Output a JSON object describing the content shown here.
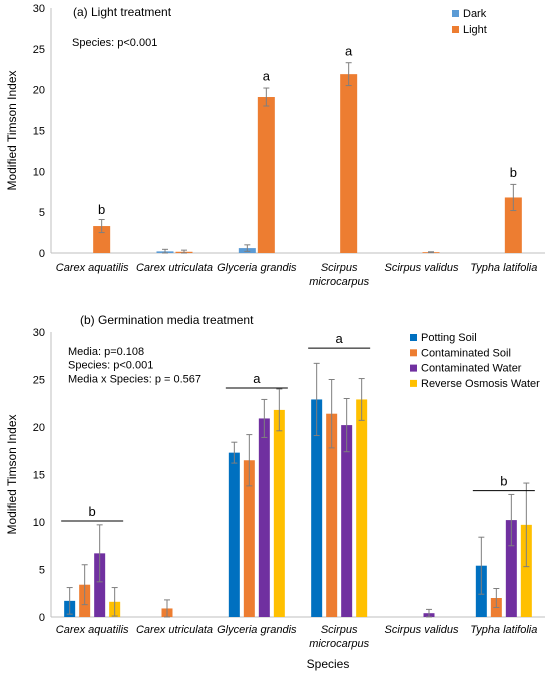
{
  "chart_data": [
    {
      "type": "bar",
      "title": "(a) Light treatment",
      "annotation_lines": [
        "Species: p<0.001"
      ],
      "ylabel": "Modified Timson Index",
      "xlabel": "",
      "ylim": [
        0,
        30
      ],
      "yticks": [
        0,
        5,
        10,
        15,
        20,
        25,
        30
      ],
      "grid": false,
      "legend": "top-right",
      "categories": [
        {
          "lines": [
            "Carex aquatilis"
          ]
        },
        {
          "lines": [
            "Carex utriculata"
          ]
        },
        {
          "lines": [
            "Glyceria grandis"
          ]
        },
        {
          "lines": [
            "Scirpus",
            "microcarpus"
          ]
        },
        {
          "lines": [
            "Scirpus validus"
          ]
        },
        {
          "lines": [
            "Typha latifolia"
          ]
        }
      ],
      "series": [
        {
          "name": "Dark",
          "color": "#5b9bd5",
          "values": [
            0,
            0.2,
            0.6,
            0,
            0,
            0
          ],
          "errors": [
            0,
            0.25,
            0.4,
            0,
            0,
            0
          ]
        },
        {
          "name": "Light",
          "color": "#ed7d31",
          "values": [
            3.3,
            0.15,
            19.1,
            21.9,
            0.1,
            6.8
          ],
          "errors": [
            0.8,
            0.2,
            1.1,
            1.4,
            0.05,
            1.6
          ]
        }
      ],
      "significance": [
        {
          "label": "b",
          "category": 0,
          "y": 4.8,
          "bracket": false
        },
        {
          "label": "a",
          "category": 2,
          "y": 21.1,
          "bracket": false
        },
        {
          "label": "a",
          "category": 3,
          "y": 24.2,
          "bracket": false
        },
        {
          "label": "b",
          "category": 5,
          "y": 9.3,
          "bracket": false
        }
      ]
    },
    {
      "type": "bar",
      "title": "(b) Germination media treatment",
      "annotation_lines": [
        "Media: p=0.108",
        "Species: p<0.001",
        "Media x Species: p = 0.567"
      ],
      "ylabel": "Modified Timson Index",
      "xlabel": "Species",
      "ylim": [
        0,
        30
      ],
      "yticks": [
        0,
        5,
        10,
        15,
        20,
        25,
        30
      ],
      "grid": false,
      "legend": "top-right",
      "categories": [
        {
          "lines": [
            "Carex aquatilis"
          ]
        },
        {
          "lines": [
            "Carex utriculata"
          ]
        },
        {
          "lines": [
            "Glyceria grandis"
          ]
        },
        {
          "lines": [
            "Scirpus",
            "microcarpus"
          ]
        },
        {
          "lines": [
            "Scirpus validus"
          ]
        },
        {
          "lines": [
            "Typha latifolia"
          ]
        }
      ],
      "series": [
        {
          "name": "Potting Soil",
          "color": "#0070c0",
          "values": [
            1.7,
            0,
            17.3,
            22.9,
            0,
            5.4
          ],
          "errors": [
            1.4,
            0,
            1.1,
            3.8,
            0,
            3.0
          ]
        },
        {
          "name": "Contaminated Soil",
          "color": "#ed7d31",
          "values": [
            3.4,
            0.9,
            16.5,
            21.4,
            0,
            2.0
          ],
          "errors": [
            2.1,
            0.9,
            2.7,
            3.6,
            0,
            1.0
          ]
        },
        {
          "name": "Contaminated Water",
          "color": "#7030a0",
          "values": [
            6.7,
            0,
            20.9,
            20.2,
            0.4,
            10.2
          ],
          "errors": [
            3.0,
            0,
            2.0,
            2.8,
            0.4,
            2.7
          ]
        },
        {
          "name": "Reverse Osmosis Water",
          "color": "#ffc000",
          "values": [
            1.6,
            0,
            21.8,
            22.9,
            0,
            9.7
          ],
          "errors": [
            1.5,
            0,
            2.2,
            2.2,
            0,
            4.4
          ]
        }
      ],
      "significance": [
        {
          "label": "b",
          "from": 0,
          "to": 0,
          "y": 10.1,
          "bracket": true
        },
        {
          "label": "a",
          "from": 2,
          "to": 2,
          "y": 24.1,
          "bracket": true
        },
        {
          "label": "a",
          "from": 3,
          "to": 3,
          "y": 28.3,
          "bracket": true
        },
        {
          "label": "b",
          "from": 5,
          "to": 5,
          "y": 13.3,
          "bracket": true
        }
      ]
    }
  ]
}
